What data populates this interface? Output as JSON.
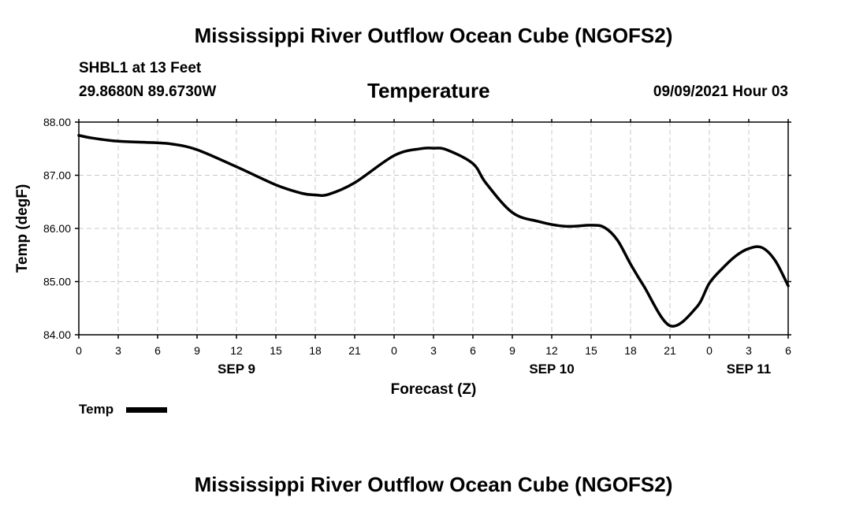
{
  "header": {
    "title": "Mississippi River Outflow Ocean Cube (NGOFS2)",
    "station": "SHBL1 at 13 Feet",
    "coordinates": "29.8680N  89.6730W",
    "variable": "Temperature",
    "datetime": "09/09/2021 Hour 03"
  },
  "footer": {
    "title": "Mississippi River Outflow Ocean Cube (NGOFS2)"
  },
  "legend": {
    "label": "Temp"
  },
  "chart_data": {
    "type": "line",
    "title": "Temperature",
    "xlabel": "Forecast (Z)",
    "ylabel": "Temp (degF)",
    "xlim": [
      0,
      54
    ],
    "ylim": [
      84.0,
      88.0
    ],
    "x_ticks": [
      0,
      3,
      6,
      9,
      12,
      15,
      18,
      21,
      24,
      27,
      30,
      33,
      36,
      39,
      42,
      45,
      48,
      51,
      54
    ],
    "x_tick_labels": [
      "0",
      "3",
      "6",
      "9",
      "12",
      "15",
      "18",
      "21",
      "0",
      "3",
      "6",
      "9",
      "12",
      "15",
      "18",
      "21",
      "0",
      "3",
      "6"
    ],
    "y_ticks": [
      84.0,
      85.0,
      86.0,
      87.0,
      88.0
    ],
    "y_tick_labels": [
      "84.00",
      "85.00",
      "86.00",
      "87.00",
      "88.00"
    ],
    "date_labels": [
      {
        "x": 12,
        "label": "SEP 9"
      },
      {
        "x": 36,
        "label": "SEP 10"
      },
      {
        "x": 51,
        "label": "SEP 11"
      }
    ],
    "grid": true,
    "series": [
      {
        "name": "Temp",
        "color": "#000000",
        "x": [
          0,
          1,
          3,
          5,
          7,
          9,
          12,
          15,
          17,
          18,
          19,
          21,
          24,
          26,
          27,
          28,
          30,
          31,
          33,
          35,
          37,
          39,
          40,
          41,
          42,
          43,
          45,
          47,
          48,
          49,
          50,
          51,
          52,
          53,
          54
        ],
        "y": [
          87.75,
          87.7,
          87.64,
          87.62,
          87.59,
          87.48,
          87.16,
          86.82,
          86.66,
          86.63,
          86.64,
          86.86,
          87.37,
          87.5,
          87.51,
          87.48,
          87.22,
          86.85,
          86.3,
          86.13,
          86.04,
          86.06,
          86.02,
          85.78,
          85.33,
          84.92,
          84.17,
          84.51,
          84.97,
          85.25,
          85.48,
          85.62,
          85.64,
          85.4,
          84.92
        ]
      }
    ]
  }
}
